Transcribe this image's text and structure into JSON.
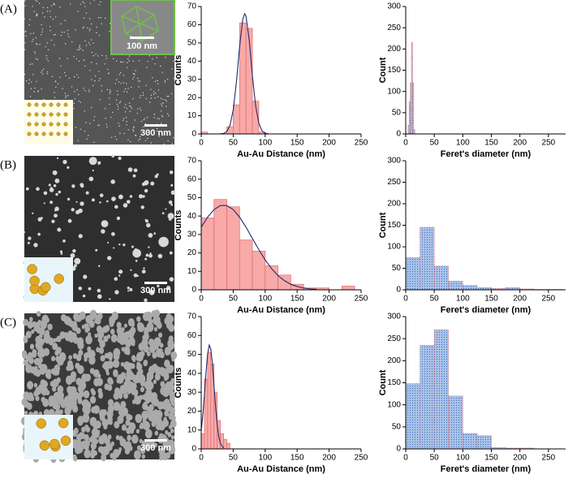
{
  "panels": [
    {
      "label": "(A)",
      "scale_bar": "300 nm",
      "inset_scale_bar": "100 nm"
    },
    {
      "label": "(B)",
      "scale_bar": "300 nm"
    },
    {
      "label": "(C)",
      "scale_bar": "300 nm"
    }
  ],
  "chart_data": [
    {
      "type": "histogram",
      "xlabel": "Au-Au Distance (nm)",
      "ylabel": "Counts",
      "bins": [
        0,
        10,
        20,
        30,
        40,
        50,
        60,
        70,
        80,
        90,
        100
      ],
      "values": [
        1,
        0,
        0,
        0,
        4,
        16,
        61,
        58,
        18,
        1
      ],
      "color": "#f7aaa8",
      "edgecolor": "#e06a6a",
      "xlim": [
        0,
        250
      ],
      "ylim": [
        0,
        70
      ],
      "xticks": [
        0,
        50,
        100,
        150,
        200,
        250
      ],
      "yticks": [
        0,
        10,
        20,
        30,
        40,
        50,
        60,
        70
      ],
      "fit": {
        "color": "#1f2a6e",
        "x": [
          30,
          35,
          40,
          45,
          50,
          55,
          60,
          65,
          68,
          70,
          75,
          80,
          85,
          90,
          95,
          100,
          105
        ],
        "values": [
          0.05,
          0.28,
          1.31,
          4.7,
          13.1,
          28.4,
          47.9,
          63.1,
          66,
          64.7,
          51.7,
          32.1,
          15.6,
          5.9,
          1.7,
          0.4,
          0.07
        ]
      }
    },
    {
      "type": "histogram",
      "xlabel": "Feret's diameter (nm)",
      "ylabel": "Count",
      "bins": [
        4,
        6,
        8,
        10,
        12,
        14,
        16
      ],
      "values": [
        20,
        75,
        120,
        215,
        120,
        10
      ],
      "color": "#a9c3ea",
      "edgecolor": "#e07070",
      "fill_pattern": "dots",
      "xlim": [
        0,
        280
      ],
      "ylim": [
        0,
        300
      ],
      "xticks": [
        0,
        50,
        100,
        150,
        200,
        250
      ],
      "yticks": [
        0,
        50,
        100,
        150,
        200,
        250,
        300
      ]
    },
    {
      "type": "histogram",
      "xlabel": "Au-Au Distance (nm)",
      "ylabel": "Counts",
      "bins": [
        0,
        20,
        40,
        60,
        80,
        100,
        120,
        140,
        160,
        180,
        200,
        220,
        240
      ],
      "values": [
        39,
        49,
        45,
        27,
        21,
        13,
        8,
        3,
        1,
        1,
        0,
        2
      ],
      "color": "#f7aaa8",
      "edgecolor": "#e06a6a",
      "xlim": [
        0,
        250
      ],
      "ylim": [
        0,
        70
      ],
      "xticks": [
        0,
        50,
        100,
        150,
        200,
        250
      ],
      "yticks": [
        0,
        10,
        20,
        30,
        40,
        50,
        60,
        70
      ],
      "fit": {
        "color": "#1f2a6e",
        "x": [
          0,
          10,
          20,
          30,
          40,
          50,
          60,
          70,
          80,
          90,
          100,
          110,
          120,
          130,
          140,
          150,
          160,
          170,
          180
        ],
        "values": [
          34,
          39.4,
          43.5,
          45.7,
          45.7,
          43.5,
          39.4,
          34,
          27.9,
          21.8,
          16.2,
          11.5,
          7.7,
          5,
          3,
          1.8,
          1,
          0.5,
          0.3
        ]
      }
    },
    {
      "type": "histogram",
      "xlabel": "Feret's diameter (nm)",
      "ylabel": "Count",
      "bins": [
        0,
        25,
        50,
        75,
        100,
        125,
        150,
        175,
        200,
        225,
        250,
        275
      ],
      "values": [
        75,
        145,
        55,
        20,
        10,
        5,
        3,
        5,
        2,
        1,
        1
      ],
      "color": "#a9c3ea",
      "edgecolor": "#e07070",
      "fill_pattern": "dots",
      "xlim": [
        0,
        280
      ],
      "ylim": [
        0,
        300
      ],
      "xticks": [
        0,
        50,
        100,
        150,
        200,
        250
      ],
      "yticks": [
        0,
        50,
        100,
        150,
        200,
        250,
        300
      ]
    },
    {
      "type": "histogram",
      "xlabel": "Au-Au Distance (nm)",
      "ylabel": "Counts",
      "bins": [
        0,
        5,
        10,
        15,
        20,
        25,
        30,
        35,
        40,
        45
      ],
      "values": [
        8,
        37,
        51,
        45,
        30,
        15,
        8,
        5,
        3
      ],
      "color": "#f7aaa8",
      "edgecolor": "#e06a6a",
      "xlim": [
        0,
        250
      ],
      "ylim": [
        0,
        70
      ],
      "xticks": [
        0,
        50,
        100,
        150,
        200,
        250
      ],
      "yticks": [
        0,
        10,
        20,
        30,
        40,
        50,
        60,
        70
      ],
      "fit": {
        "color": "#1f2a6e",
        "x": [
          0,
          2.5,
          5,
          7.5,
          10,
          12.5,
          15,
          17.5,
          20,
          22.5,
          25,
          27.5,
          30,
          35
        ],
        "values": [
          9.8,
          17.9,
          28.6,
          40.4,
          50.2,
          54.9,
          52.8,
          44.7,
          33.4,
          21.9,
          12.7,
          6.4,
          2.9,
          0.4
        ]
      }
    },
    {
      "type": "histogram",
      "xlabel": "Feret's diameter (nm)",
      "ylabel": "Count",
      "bins": [
        0,
        25,
        50,
        75,
        100,
        125,
        150,
        175,
        200,
        225
      ],
      "values": [
        148,
        235,
        270,
        120,
        35,
        30,
        3,
        2,
        2
      ],
      "color": "#a9c3ea",
      "edgecolor": "#e07070",
      "fill_pattern": "dots",
      "xlim": [
        0,
        280
      ],
      "ylim": [
        0,
        300
      ],
      "xticks": [
        0,
        50,
        100,
        150,
        200,
        250
      ],
      "yticks": [
        0,
        50,
        100,
        150,
        200,
        250,
        300
      ]
    }
  ]
}
